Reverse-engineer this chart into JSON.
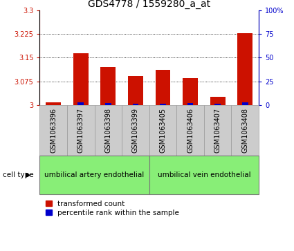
{
  "title": "GDS4778 / 1559280_a_at",
  "samples": [
    "GSM1063396",
    "GSM1063397",
    "GSM1063398",
    "GSM1063399",
    "GSM1063405",
    "GSM1063406",
    "GSM1063407",
    "GSM1063408"
  ],
  "red_values": [
    3.01,
    3.165,
    3.12,
    3.092,
    3.112,
    3.085,
    3.028,
    3.228
  ],
  "blue_values": [
    0.5,
    3.0,
    2.5,
    2.0,
    2.0,
    2.5,
    2.0,
    3.0
  ],
  "ylim_left": [
    3.0,
    3.3
  ],
  "ylim_right": [
    0,
    100
  ],
  "yticks_left": [
    3.0,
    3.075,
    3.15,
    3.225,
    3.3
  ],
  "ytick_labels_left": [
    "3",
    "3.075",
    "3.15",
    "3.225",
    "3.3"
  ],
  "yticks_right": [
    0,
    25,
    50,
    75,
    100
  ],
  "ytick_labels_right": [
    "0",
    "25",
    "50",
    "75",
    "100%"
  ],
  "gridlines": [
    3.075,
    3.15,
    3.225
  ],
  "group1_label": "umbilical artery endothelial",
  "group2_label": "umbilical vein endothelial",
  "group1_samples": [
    0,
    1,
    2,
    3
  ],
  "group2_samples": [
    4,
    5,
    6,
    7
  ],
  "cell_type_label": "cell type",
  "legend_red": "transformed count",
  "legend_blue": "percentile rank within the sample",
  "bar_width": 0.55,
  "blue_bar_width": 0.22,
  "red_color": "#cc1100",
  "blue_color": "#0000cc",
  "group_bg": "#88ee77",
  "tick_bg": "#cccccc",
  "title_fontsize": 10,
  "tick_fontsize": 7,
  "label_fontsize": 7.5,
  "group_fontsize": 7.5
}
